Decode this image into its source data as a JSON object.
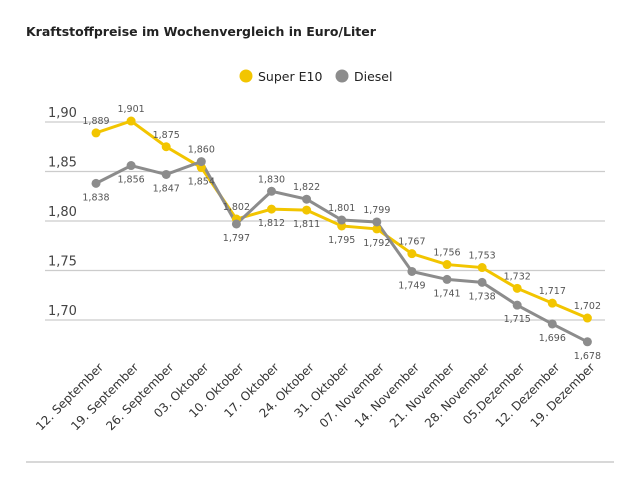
{
  "chart_data": {
    "type": "line",
    "title": "Kraftstoffpreise im Wochenvergleich in Euro/Liter",
    "categories": [
      "12. September",
      "19. September",
      "26. September",
      "03. Oktober",
      "10. Oktober",
      "17. Oktober",
      "24. Oktober",
      "31. Oktober",
      "07. November",
      "14. November",
      "21. November",
      "28. November",
      "05.Dezember",
      "12. Dezember",
      "19. Dezember"
    ],
    "series": [
      {
        "name": "Super E10",
        "color": "#f2c500",
        "values": [
          1.889,
          1.901,
          1.875,
          1.854,
          1.802,
          1.812,
          1.811,
          1.795,
          1.792,
          1.767,
          1.756,
          1.753,
          1.732,
          1.717,
          1.702
        ]
      },
      {
        "name": "Diesel",
        "color": "#8c8c8c",
        "values": [
          1.838,
          1.856,
          1.847,
          1.86,
          1.797,
          1.83,
          1.822,
          1.801,
          1.799,
          1.749,
          1.741,
          1.738,
          1.715,
          1.696,
          1.678
        ]
      }
    ],
    "yticks": [
      "1,90",
      "1,85",
      "1,80",
      "1,75",
      "1,70"
    ],
    "ytick_values": [
      1.9,
      1.85,
      1.8,
      1.75,
      1.7
    ],
    "ylim": [
      1.66,
      1.92
    ],
    "grid": true,
    "legend": "top-center"
  }
}
